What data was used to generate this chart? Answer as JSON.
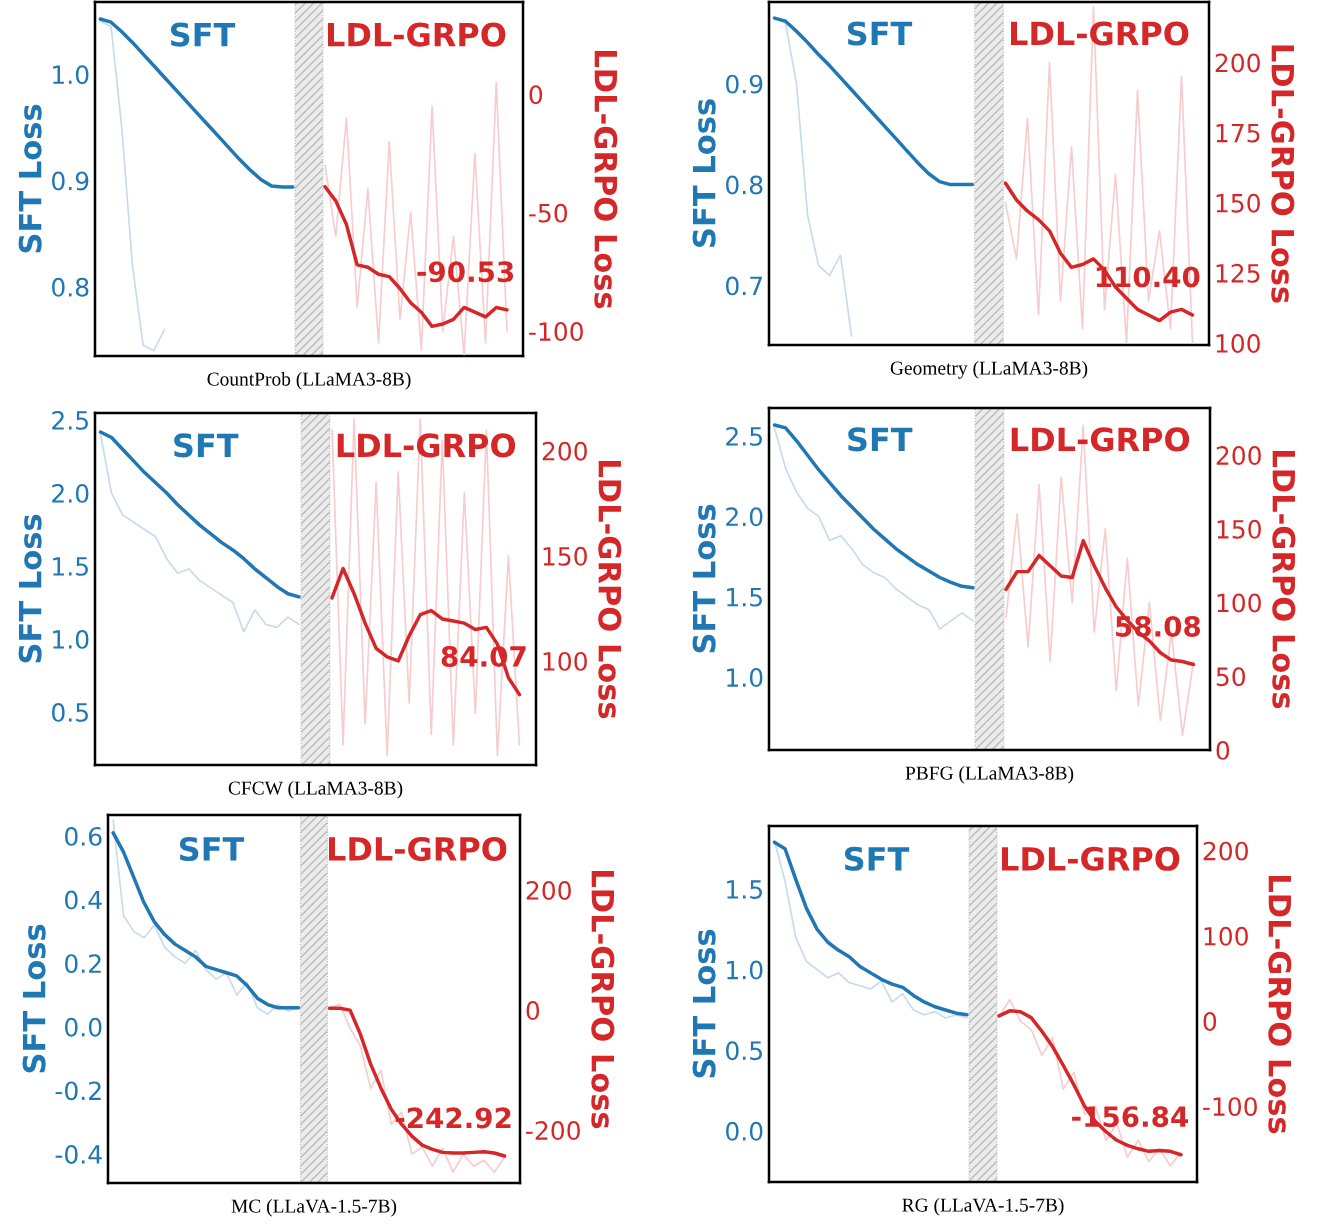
{
  "chart_data": [
    {
      "type": "line",
      "xlabel": "CountProb (LLaMA3-8B)",
      "ylabel": "SFT Loss",
      "y2label": "LDL-GRPO Loss",
      "categories": [
        null,
        null,
        null,
        null,
        null,
        null,
        null,
        null,
        null,
        null,
        null,
        null,
        null,
        null,
        null,
        null,
        null,
        null,
        null,
        null,
        null,
        null,
        null,
        null,
        null,
        null,
        null,
        null,
        null,
        null,
        null,
        null,
        null,
        null,
        null,
        null,
        null,
        null,
        null,
        null
      ],
      "ylim": [
        0.735,
        1.068
      ],
      "yticks": [
        0.8,
        0.9,
        {
          "value": 1.0,
          "label": "1.0"
        }
      ],
      "y2lim": [
        -110.5,
        39
      ],
      "y2ticks": [
        -100,
        -50,
        0
      ],
      "annotations": [
        "-90.53"
      ],
      "series": [
        {
          "color": "#c6dbef",
          "values": [
            1.05,
            1.045,
            0.95,
            0.82,
            0.745,
            0.74,
            0.76,
            null,
            null,
            null,
            null,
            null,
            null,
            null,
            null,
            null,
            null,
            null,
            null,
            null,
            null,
            null,
            null,
            null,
            null,
            null,
            null,
            null,
            null,
            null,
            null,
            null,
            null,
            null,
            null,
            null,
            null,
            null,
            null,
            null
          ]
        },
        {
          "name": "SFT",
          "color": "#1f77b4",
          "values": [
            1.052,
            1.049,
            1.04,
            1.03,
            1.019,
            1.008,
            0.997,
            0.986,
            0.975,
            0.964,
            0.953,
            0.942,
            0.931,
            0.92,
            0.91,
            0.901,
            0.895,
            0.894,
            0.894,
            null,
            null,
            null,
            null,
            null,
            null,
            null,
            null,
            null,
            null,
            null,
            null,
            null,
            null,
            null,
            null,
            null,
            null,
            null,
            null,
            null
          ]
        },
        {
          "axis": "y2",
          "color": "#f8cccc",
          "values": [
            null,
            null,
            null,
            null,
            null,
            null,
            null,
            null,
            null,
            null,
            null,
            null,
            null,
            null,
            null,
            null,
            null,
            null,
            null,
            null,
            null,
            -30,
            -60,
            -10,
            -90,
            -40,
            -105,
            -20,
            -95,
            -50,
            -108,
            -5,
            -100,
            -60,
            -110,
            -25,
            -105,
            5,
            -100,
            null
          ]
        },
        {
          "axis": "y2",
          "name": "LDL-GRPO",
          "color": "#d62728",
          "values": [
            null,
            null,
            null,
            null,
            null,
            null,
            null,
            null,
            null,
            null,
            null,
            null,
            null,
            null,
            null,
            null,
            null,
            null,
            null,
            null,
            null,
            -39,
            -45,
            -55,
            -72,
            -73,
            -76,
            -77,
            -82,
            -88,
            -92,
            -98,
            -97,
            -95,
            -90,
            -92,
            -94,
            -90,
            -91,
            null
          ]
        }
      ]
    },
    {
      "type": "line",
      "xlabel": "Geometry (LLaMA3-8B)",
      "ylabel": "SFT Loss",
      "y2label": "LDL-GRPO Loss",
      "categories": [
        null,
        null,
        null,
        null,
        null,
        null,
        null,
        null,
        null,
        null,
        null,
        null,
        null,
        null,
        null,
        null,
        null,
        null,
        null,
        null,
        null,
        null,
        null,
        null,
        null,
        null,
        null,
        null,
        null,
        null,
        null,
        null,
        null,
        null,
        null,
        null,
        null,
        null,
        null,
        null
      ],
      "ylim": [
        0.641,
        0.981
      ],
      "yticks": [
        0.7,
        0.8,
        0.9
      ],
      "y2lim": [
        99.3,
        221.6
      ],
      "y2ticks": [
        100,
        125,
        150,
        175,
        200
      ],
      "annotations": [
        "110.40"
      ],
      "series": [
        {
          "color": "#c6dbef",
          "values": [
            0.965,
            0.96,
            0.9,
            0.77,
            0.72,
            0.71,
            0.73,
            0.65,
            null,
            null,
            null,
            null,
            null,
            null,
            null,
            null,
            null,
            null,
            null,
            null,
            null,
            null,
            null,
            null,
            null,
            null,
            null,
            null,
            null,
            null,
            null,
            null,
            null,
            null,
            null,
            null,
            null,
            null,
            null,
            null
          ]
        },
        {
          "name": "SFT",
          "color": "#1f77b4",
          "values": [
            0.965,
            0.962,
            0.952,
            0.941,
            0.929,
            0.918,
            0.906,
            0.894,
            0.882,
            0.87,
            0.858,
            0.846,
            0.834,
            0.822,
            0.811,
            0.803,
            0.8,
            0.8,
            0.8,
            null,
            null,
            null,
            null,
            null,
            null,
            null,
            null,
            null,
            null,
            null,
            null,
            null,
            null,
            null,
            null,
            null,
            null,
            null,
            null,
            null
          ]
        },
        {
          "axis": "y2",
          "color": "#f8cccc",
          "values": [
            null,
            null,
            null,
            null,
            null,
            null,
            null,
            null,
            null,
            null,
            null,
            null,
            null,
            null,
            null,
            null,
            null,
            null,
            null,
            null,
            null,
            150,
            130,
            180,
            110,
            200,
            115,
            170,
            105,
            220,
            112,
            160,
            100,
            190,
            115,
            140,
            105,
            195,
            100,
            null
          ]
        },
        {
          "axis": "y2",
          "name": "LDL-GRPO",
          "color": "#d62728",
          "values": [
            null,
            null,
            null,
            null,
            null,
            null,
            null,
            null,
            null,
            null,
            null,
            null,
            null,
            null,
            null,
            null,
            null,
            null,
            null,
            null,
            null,
            157,
            151,
            147,
            144,
            140,
            132,
            127,
            128,
            130,
            126,
            120,
            116,
            112,
            110,
            108,
            111,
            112,
            110,
            null
          ]
        }
      ]
    },
    {
      "type": "line",
      "xlabel": "CFCW (LLaMA3-8B)",
      "ylabel": "SFT Loss",
      "y2label": "LDL-GRPO Loss",
      "categories": [
        null,
        null,
        null,
        null,
        null,
        null,
        null,
        null,
        null,
        null,
        null,
        null,
        null,
        null,
        null,
        null,
        null,
        null,
        null,
        null,
        null,
        null,
        null,
        null,
        null,
        null,
        null,
        null,
        null,
        null,
        null,
        null,
        null,
        null,
        null,
        null,
        null,
        null,
        null,
        null
      ],
      "ylim": [
        0.137,
        2.548
      ],
      "yticks": [
        0.5,
        {
          "value": 1.0,
          "label": "1.0"
        },
        1.5,
        {
          "value": 2.0,
          "label": "2.0"
        },
        2.5
      ],
      "y2lim": [
        50.5,
        218
      ],
      "y2ticks": [
        100,
        150,
        200
      ],
      "annotations": [
        "84.07"
      ],
      "series": [
        {
          "color": "#c6dbef",
          "values": [
            2.4,
            2.0,
            1.85,
            1.8,
            1.75,
            1.7,
            1.55,
            1.45,
            1.48,
            1.4,
            1.35,
            1.3,
            1.25,
            1.05,
            1.2,
            1.1,
            1.08,
            1.15,
            1.1,
            null,
            null,
            null,
            null,
            null,
            null,
            null,
            null,
            null,
            null,
            null,
            null,
            null,
            null,
            null,
            null,
            null,
            null,
            null,
            null,
            null
          ]
        },
        {
          "name": "SFT",
          "color": "#1f77b4",
          "values": [
            2.418,
            2.38,
            2.3,
            2.22,
            2.14,
            2.07,
            2.0,
            1.92,
            1.85,
            1.78,
            1.72,
            1.66,
            1.61,
            1.55,
            1.48,
            1.42,
            1.36,
            1.31,
            1.288,
            null,
            null,
            null,
            null,
            null,
            null,
            null,
            null,
            null,
            null,
            null,
            null,
            null,
            null,
            null,
            null,
            null,
            null,
            null,
            null,
            null
          ]
        },
        {
          "axis": "y2",
          "color": "#f8cccc",
          "values": [
            null,
            null,
            null,
            null,
            null,
            null,
            null,
            null,
            null,
            null,
            null,
            null,
            null,
            null,
            null,
            null,
            null,
            null,
            null,
            null,
            null,
            210,
            60,
            215,
            70,
            185,
            55,
            190,
            80,
            215,
            65,
            205,
            60,
            180,
            75,
            210,
            55,
            150,
            60,
            null
          ]
        },
        {
          "axis": "y2",
          "name": "LDL-GRPO",
          "color": "#d62728",
          "values": [
            null,
            null,
            null,
            null,
            null,
            null,
            null,
            null,
            null,
            null,
            null,
            null,
            null,
            null,
            null,
            null,
            null,
            null,
            null,
            null,
            null,
            130,
            144,
            132,
            118,
            106,
            102,
            100,
            112,
            122,
            124,
            120,
            119,
            118,
            115,
            116,
            108,
            92,
            84,
            null
          ]
        }
      ]
    },
    {
      "type": "line",
      "xlabel": "PBFG (LLaMA3-8B)",
      "ylabel": "SFT Loss",
      "y2label": "LDL-GRPO Loss",
      "categories": [
        null,
        null,
        null,
        null,
        null,
        null,
        null,
        null,
        null,
        null,
        null,
        null,
        null,
        null,
        null,
        null,
        null,
        null,
        null,
        null,
        null,
        null,
        null,
        null,
        null,
        null,
        null,
        null,
        null,
        null,
        null,
        null,
        null,
        null,
        null,
        null,
        null,
        null,
        null,
        null
      ],
      "ylim": [
        0.547,
        2.674
      ],
      "yticks": [
        {
          "value": 1.0,
          "label": "1.0"
        },
        1.5,
        {
          "value": 2.0,
          "label": "2.0"
        },
        2.5
      ],
      "y2lim": [
        0,
        232
      ],
      "y2ticks": [
        0,
        50,
        100,
        150,
        200
      ],
      "annotations": [
        "58.08"
      ],
      "series": [
        {
          "color": "#c6dbef",
          "values": [
            2.55,
            2.3,
            2.15,
            2.05,
            2.0,
            1.85,
            1.88,
            1.8,
            1.7,
            1.65,
            1.62,
            1.55,
            1.5,
            1.45,
            1.42,
            1.3,
            1.35,
            1.4,
            1.35,
            null,
            null,
            null,
            null,
            null,
            null,
            null,
            null,
            null,
            null,
            null,
            null,
            null,
            null,
            null,
            null,
            null,
            null,
            null,
            null,
            null
          ]
        },
        {
          "name": "SFT",
          "color": "#1f77b4",
          "values": [
            2.568,
            2.55,
            2.47,
            2.38,
            2.29,
            2.21,
            2.13,
            2.06,
            1.99,
            1.92,
            1.86,
            1.8,
            1.75,
            1.7,
            1.66,
            1.62,
            1.59,
            1.565,
            1.556,
            null,
            null,
            null,
            null,
            null,
            null,
            null,
            null,
            null,
            null,
            null,
            null,
            null,
            null,
            null,
            null,
            null,
            null,
            null,
            null,
            null
          ]
        },
        {
          "axis": "y2",
          "color": "#f8cccc",
          "values": [
            null,
            null,
            null,
            null,
            null,
            null,
            null,
            null,
            null,
            null,
            null,
            null,
            null,
            null,
            null,
            null,
            null,
            null,
            null,
            null,
            null,
            90,
            160,
            70,
            180,
            60,
            185,
            100,
            220,
            80,
            150,
            40,
            130,
            30,
            100,
            20,
            80,
            10,
            60,
            null
          ]
        },
        {
          "axis": "y2",
          "name": "LDL-GRPO",
          "color": "#d62728",
          "values": [
            null,
            null,
            null,
            null,
            null,
            null,
            null,
            null,
            null,
            null,
            null,
            null,
            null,
            null,
            null,
            null,
            null,
            null,
            null,
            null,
            null,
            109,
            121,
            121,
            132,
            125,
            118,
            117,
            142,
            125,
            110,
            97,
            88,
            80,
            74,
            66,
            61,
            60,
            58,
            null
          ]
        }
      ]
    },
    {
      "type": "line",
      "xlabel": "MC (LLaVA-1.5-7B)",
      "ylabel": "SFT Loss",
      "y2label": "LDL-GRPO Loss",
      "categories": [
        null,
        null,
        null,
        null,
        null,
        null,
        null,
        null,
        null,
        null,
        null,
        null,
        null,
        null,
        null,
        null,
        null,
        null,
        null,
        null,
        null,
        null,
        null,
        null,
        null,
        null,
        null,
        null,
        null,
        null,
        null,
        null,
        null,
        null,
        null,
        null,
        null,
        null,
        null,
        null
      ],
      "ylim": [
        -0.491,
        0.666
      ],
      "yticks": [
        {
          "value": -0.4,
          "label": "-0.4"
        },
        {
          "value": -0.2,
          "label": "-0.2"
        },
        {
          "value": 0.0,
          "label": "0.0"
        },
        0.2,
        0.4,
        0.6
      ],
      "y2lim": [
        -288,
        325
      ],
      "y2ticks": [
        {
          "value": -200,
          "label": "-200"
        },
        0,
        200
      ],
      "annotations": [
        "-242.92"
      ],
      "series": [
        {
          "color": "#c6dbef",
          "values": [
            0.65,
            0.35,
            0.3,
            0.28,
            0.32,
            0.25,
            0.22,
            0.2,
            0.24,
            0.18,
            0.15,
            0.17,
            0.1,
            0.14,
            0.06,
            0.04,
            0.07,
            0.05,
            0.06,
            null,
            null,
            null,
            null,
            null,
            null,
            null,
            null,
            null,
            null,
            null,
            null,
            null,
            null,
            null,
            null,
            null,
            null,
            null,
            null,
            null
          ]
        },
        {
          "name": "SFT",
          "color": "#1f77b4",
          "values": [
            0.61,
            0.55,
            0.47,
            0.39,
            0.33,
            0.29,
            0.26,
            0.24,
            0.22,
            0.19,
            0.18,
            0.17,
            0.16,
            0.13,
            0.09,
            0.07,
            0.06,
            0.06,
            0.06,
            null,
            null,
            null,
            null,
            null,
            null,
            null,
            null,
            null,
            null,
            null,
            null,
            null,
            null,
            null,
            null,
            null,
            null,
            null,
            null,
            null
          ]
        },
        {
          "axis": "y2",
          "color": "#f8cccc",
          "values": [
            null,
            null,
            null,
            null,
            null,
            null,
            null,
            null,
            null,
            null,
            null,
            null,
            null,
            null,
            null,
            null,
            null,
            null,
            null,
            null,
            null,
            3,
            10,
            -30,
            -60,
            -130,
            -100,
            -190,
            -170,
            -240,
            -228,
            -260,
            -230,
            -270,
            -240,
            -260,
            -250,
            -270,
            -245,
            null
          ]
        },
        {
          "axis": "y2",
          "name": "LDL-GRPO",
          "color": "#d62728",
          "values": [
            null,
            null,
            null,
            null,
            null,
            null,
            null,
            null,
            null,
            null,
            null,
            null,
            null,
            null,
            null,
            null,
            null,
            null,
            null,
            null,
            null,
            3,
            3,
            0,
            -40,
            -90,
            -130,
            -165,
            -190,
            -210,
            -225,
            -232,
            -237,
            -238,
            -238,
            -237,
            -236,
            -238,
            -243,
            null
          ]
        }
      ]
    },
    {
      "type": "line",
      "xlabel": "RG (LLaVA-1.5-7B)",
      "ylabel": "SFT Loss",
      "y2label": "LDL-GRPO Loss",
      "categories": [
        null,
        null,
        null,
        null,
        null,
        null,
        null,
        null,
        null,
        null,
        null,
        null,
        null,
        null,
        null,
        null,
        null,
        null,
        null,
        null,
        null,
        null,
        null,
        null,
        null,
        null,
        null,
        null,
        null,
        null,
        null,
        null,
        null,
        null,
        null,
        null,
        null,
        null,
        null,
        null
      ],
      "ylim": [
        -0.317,
        1.891
      ],
      "yticks": [
        {
          "value": 0.0,
          "label": "0.0"
        },
        0.5,
        {
          "value": 1.0,
          "label": "1.0"
        },
        1.5
      ],
      "y2lim": [
        -189,
        229
      ],
      "y2ticks": [
        {
          "value": -100,
          "label": "-100"
        },
        0,
        100,
        200
      ],
      "annotations": [
        "-156.84"
      ],
      "series": [
        {
          "color": "#c6dbef",
          "values": [
            1.8,
            1.55,
            1.2,
            1.05,
            1.0,
            0.95,
            0.98,
            0.92,
            0.9,
            0.88,
            0.93,
            0.8,
            0.85,
            0.75,
            0.72,
            0.74,
            0.7,
            0.72,
            0.7,
            null,
            null,
            null,
            null,
            null,
            null,
            null,
            null,
            null,
            null,
            null,
            null,
            null,
            null,
            null,
            null,
            null,
            null,
            null,
            null,
            null
          ]
        },
        {
          "name": "SFT",
          "color": "#1f77b4",
          "values": [
            1.79,
            1.75,
            1.56,
            1.38,
            1.25,
            1.17,
            1.12,
            1.08,
            1.02,
            0.98,
            0.94,
            0.91,
            0.89,
            0.84,
            0.8,
            0.77,
            0.75,
            0.73,
            0.72,
            null,
            null,
            null,
            null,
            null,
            null,
            null,
            null,
            null,
            null,
            null,
            null,
            null,
            null,
            null,
            null,
            null,
            null,
            null,
            null,
            null
          ]
        },
        {
          "axis": "y2",
          "color": "#f8cccc",
          "values": [
            null,
            null,
            null,
            null,
            null,
            null,
            null,
            null,
            null,
            null,
            null,
            null,
            null,
            null,
            null,
            null,
            null,
            null,
            null,
            null,
            null,
            5,
            25,
            0,
            -10,
            -40,
            -20,
            -80,
            -60,
            -110,
            -100,
            -140,
            -120,
            -160,
            -140,
            -165,
            -150,
            -170,
            -155,
            null
          ]
        },
        {
          "axis": "y2",
          "name": "LDL-GRPO",
          "color": "#d62728",
          "values": [
            null,
            null,
            null,
            null,
            null,
            null,
            null,
            null,
            null,
            null,
            null,
            null,
            null,
            null,
            null,
            null,
            null,
            null,
            null,
            null,
            null,
            6,
            12,
            11,
            4,
            -12,
            -30,
            -52,
            -75,
            -100,
            -118,
            -130,
            -140,
            -146,
            -150,
            -153,
            -152,
            -153,
            -157,
            null
          ]
        }
      ]
    }
  ]
}
